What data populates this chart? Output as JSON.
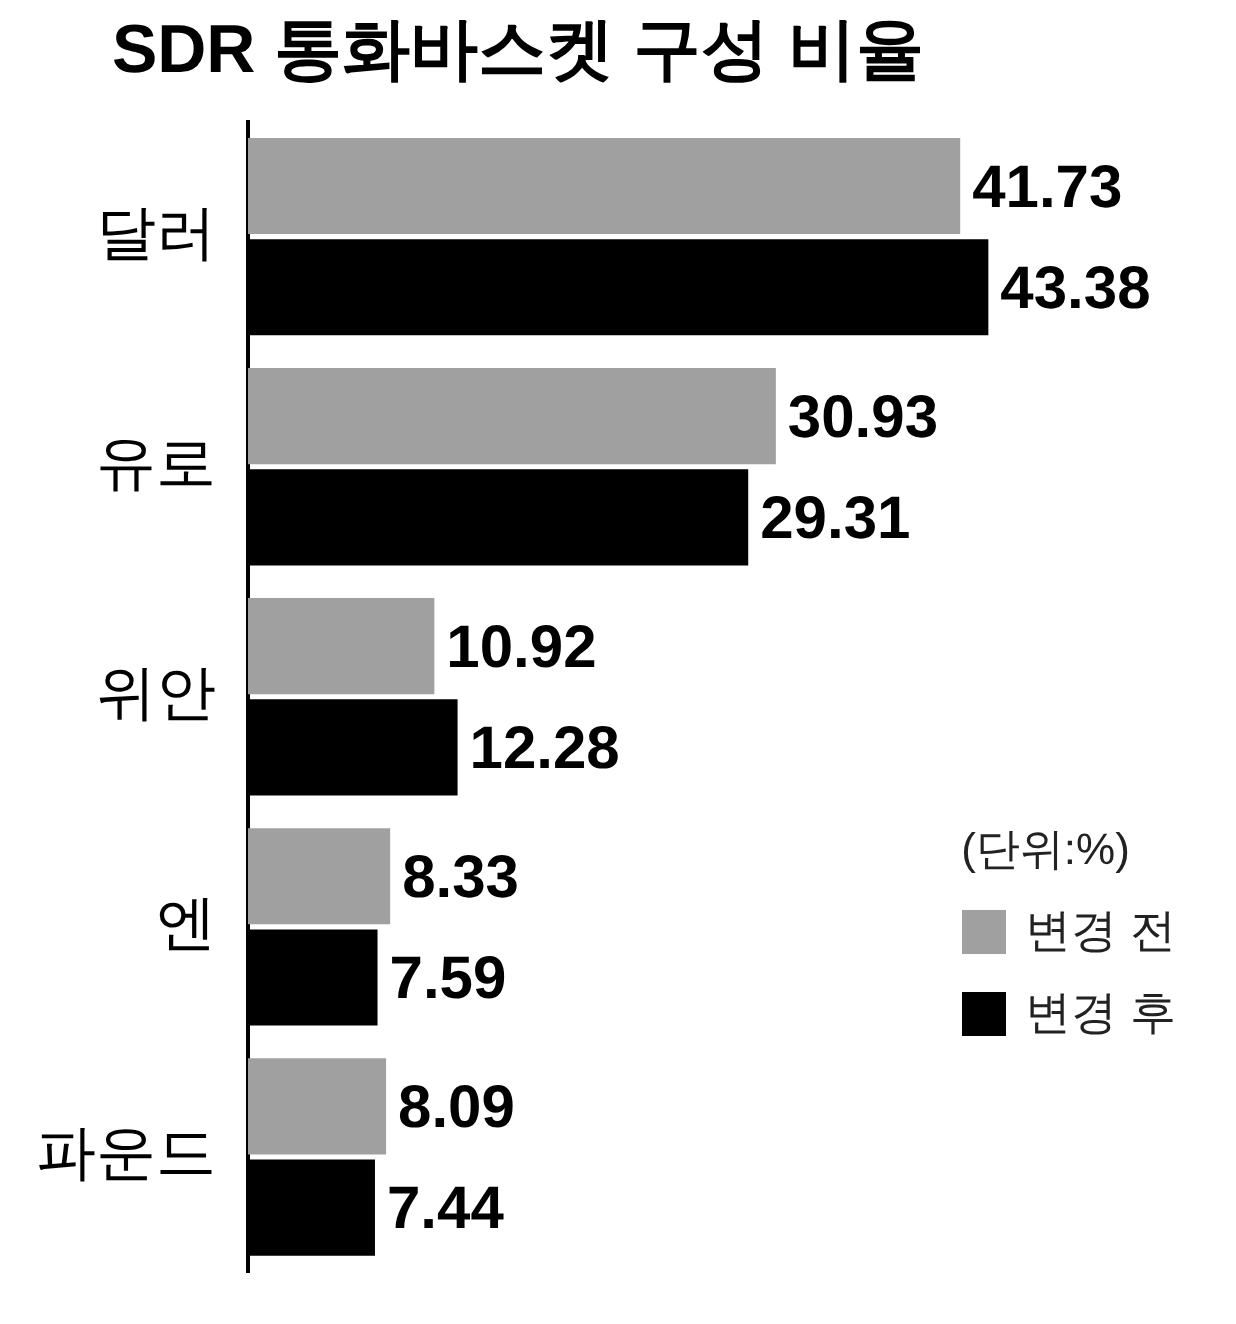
{
  "chart_data": {
    "type": "bar",
    "orientation": "horizontal",
    "title": "SDR 통화바스켓 구성 비율",
    "categories": [
      "달러",
      "유로",
      "위안",
      "엔",
      "파운드"
    ],
    "series": [
      {
        "name": "변경 전",
        "color": "#a0a0a0",
        "values": [
          41.73,
          30.93,
          10.92,
          8.33,
          8.09
        ]
      },
      {
        "name": "변경 후",
        "color": "#000000",
        "values": [
          43.38,
          29.31,
          12.28,
          7.59,
          7.44
        ]
      }
    ],
    "data_labels": true,
    "legend": "bottom right",
    "annotations": [
      "(단위:%)"
    ]
  }
}
